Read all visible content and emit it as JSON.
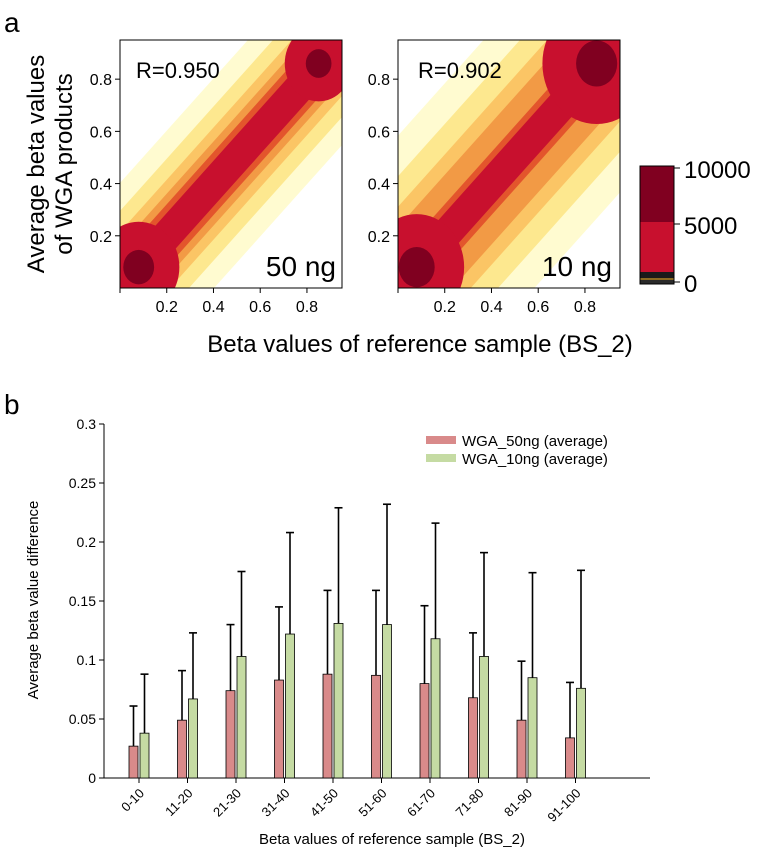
{
  "panel_a": {
    "label": "a",
    "ylabel_line1": "Average beta values",
    "ylabel_line2": "of WGA products",
    "xlabel": "Beta values of reference sample (BS_2)",
    "colorbar": {
      "labels": [
        "10000",
        "5000",
        "0"
      ],
      "colors": [
        "#800020",
        "#c8102e",
        "#1a1a1a"
      ]
    }
  },
  "panel_b": {
    "label": "b"
  },
  "chart_data": [
    {
      "type": "heatmap",
      "annotation": "R=0.950",
      "corner_label": "50 ng",
      "x_ticks": [
        0.2,
        0.4,
        0.6,
        0.8
      ],
      "y_ticks": [
        0.2,
        0.4,
        0.6,
        0.8
      ],
      "xlim": [
        0,
        0.95
      ],
      "ylim": [
        0,
        0.95
      ],
      "density_colors": [
        "#fffbd0",
        "#fde88f",
        "#fbc565",
        "#f29a45",
        "#e3552c",
        "#c8102e",
        "#800020"
      ]
    },
    {
      "type": "heatmap",
      "annotation": "R=0.902",
      "corner_label": "10 ng",
      "x_ticks": [
        0.2,
        0.4,
        0.6,
        0.8
      ],
      "y_ticks": [
        0.2,
        0.4,
        0.6,
        0.8
      ],
      "xlim": [
        0,
        0.95
      ],
      "ylim": [
        0,
        0.95
      ],
      "density_colors": [
        "#fffbd0",
        "#fde88f",
        "#fbc565",
        "#f29a45",
        "#e3552c",
        "#c8102e",
        "#800020"
      ]
    },
    {
      "type": "bar",
      "xlabel": "Beta values of reference sample (BS_2)",
      "ylabel": "Average beta value difference",
      "categories": [
        "0-10",
        "11-20",
        "21-30",
        "31-40",
        "41-50",
        "51-60",
        "61-70",
        "71-80",
        "81-90",
        "91-100"
      ],
      "ylim": [
        0,
        0.3
      ],
      "yticks": [
        "0",
        "0.05",
        "0.1",
        "0.15",
        "0.2",
        "0.25",
        "0.3"
      ],
      "legend_position": "top-right",
      "series": [
        {
          "name": "WGA_50ng (average)",
          "color": "#d98a8a",
          "values": [
            0.027,
            0.049,
            0.074,
            0.083,
            0.088,
            0.087,
            0.08,
            0.068,
            0.049,
            0.034
          ],
          "error_upper": [
            0.061,
            0.091,
            0.13,
            0.145,
            0.159,
            0.159,
            0.146,
            0.123,
            0.099,
            0.081
          ]
        },
        {
          "name": "WGA_10ng (average)",
          "color": "#c5dba3",
          "values": [
            0.038,
            0.067,
            0.103,
            0.122,
            0.131,
            0.13,
            0.118,
            0.103,
            0.085,
            0.076
          ],
          "error_upper": [
            0.088,
            0.123,
            0.175,
            0.208,
            0.229,
            0.232,
            0.216,
            0.191,
            0.174,
            0.176
          ]
        }
      ]
    }
  ]
}
